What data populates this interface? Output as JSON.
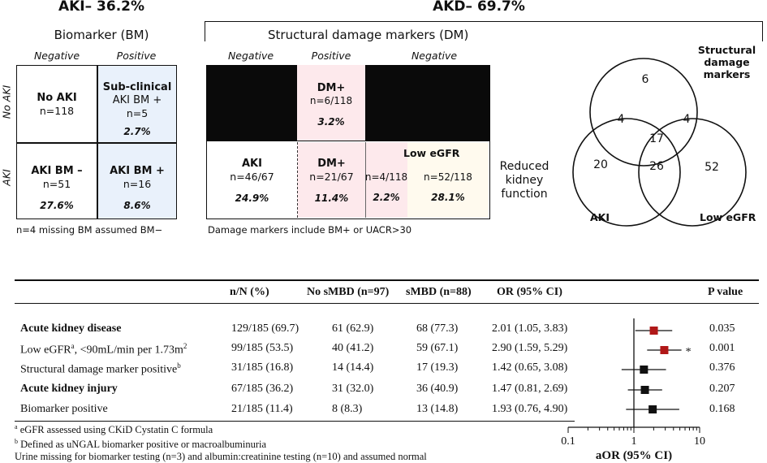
{
  "aki": {
    "title": "AKI– 36.2%",
    "subtitle": "Biomarker (BM)",
    "col_neg": "Negative",
    "col_pos": "Positive",
    "row_noaki": "No AKI",
    "row_aki": "AKI",
    "cells": {
      "tl": {
        "title": "No AKI",
        "n": "n=118"
      },
      "tr": {
        "title1": "Sub-clinical",
        "title2": "AKI BM +",
        "n": "n=5",
        "pct": "2.7%"
      },
      "bl": {
        "title": "AKI BM –",
        "n": "n=51",
        "pct": "27.6%"
      },
      "br": {
        "title": "AKI BM +",
        "n": "n=16",
        "pct": "8.6%"
      }
    },
    "note": "n=4 missing BM assumed BM−"
  },
  "akd": {
    "title": "AKD– 69.7%",
    "subtitle": "Structural damage markers (DM)",
    "col_neg1": "Negative",
    "col_pos": "Positive",
    "col_neg2": "Negative",
    "top_dm": {
      "title": "DM+",
      "n": "n=6/118",
      "pct": "3.2%"
    },
    "aki_cell": {
      "title": "AKI",
      "n": "n=46/67",
      "pct": "24.9%"
    },
    "dm_cell": {
      "title": "DM+",
      "n": "n=21/67",
      "pct": "11.4%"
    },
    "low_egfr": "Low eGFR",
    "lg1": {
      "n": "n=4/118",
      "pct": "2.2%"
    },
    "lg2": {
      "n": "n=52/118",
      "pct": "28.1%"
    },
    "reduced": [
      "Reduced",
      "kidney",
      "function"
    ],
    "note": "Damage markers include BM+ or UACR>30"
  },
  "venn": {
    "label_structural": [
      "Structural",
      "damage markers"
    ],
    "label_aki": "AKI",
    "label_low": "Low eGFR",
    "values": {
      "struct_only": "6",
      "struct_aki": "4",
      "struct_low": "4",
      "all": "17",
      "aki_only": "20",
      "aki_low": "26",
      "low_only": "52"
    }
  },
  "table": {
    "headers": {
      "nN": "n/N (%)",
      "no_smbd": "No sMBD (n=97)",
      "smbd": "sMBD (n=88)",
      "or": "OR (95% CI)",
      "p": "P value"
    },
    "rows": [
      {
        "label": "Acute kidney disease",
        "nN": "129/185 (69.7)",
        "no": "61 (62.9)",
        "yes": "68 (77.3)",
        "or": "2.01 (1.05, 3.83)",
        "p": "0.035"
      },
      {
        "label": "Low eGFR",
        "sup": "a",
        "label_rest": ", <90mL/min per 1.73m",
        "sup2": "2",
        "nN": "99/185 (53.5)",
        "no": "40 (41.2)",
        "yes": "59 (67.1)",
        "or": "2.90 (1.59, 5.29)",
        "p": "0.001"
      },
      {
        "label": "Structural damage marker positive",
        "sup": "b",
        "nN": "31/185 (16.8)",
        "no": "14 (14.4)",
        "yes": "17 (19.3)",
        "or": "1.42 (0.65, 3.08)",
        "p": "0.376"
      },
      {
        "label": "Acute kidney injury",
        "nN": "67/185 (36.2)",
        "no": "31 (32.0)",
        "yes": "36 (40.9)",
        "or": "1.47 (0.81, 2.69)",
        "p": "0.207"
      },
      {
        "label": "Biomarker positive",
        "nN": "21/185 (11.4)",
        "no": "8 (8.3)",
        "yes": "13 (14.8)",
        "or": "1.93 (0.76, 4.90)",
        "p": "0.168"
      }
    ],
    "footnotes": [
      {
        "sup": "a",
        "text": " eGFR assessed using CKiD Cystatin C formula"
      },
      {
        "sup": "b",
        "text": " Defined as uNGAL biomarker positive or macroalbuminuria"
      },
      {
        "sup": "",
        "text": "Urine missing for biomarker testing (n=3) and albumin:creatinine testing (n=10) and assumed normal"
      }
    ]
  },
  "chart_data": {
    "type": "scatter",
    "xlabel": "aOR (95% CI)",
    "x_scale": "log",
    "xlim": [
      0.1,
      10
    ],
    "tick_labels": [
      "0.1",
      "1",
      "10"
    ],
    "points": [
      {
        "est": 2.01,
        "lo": 1.05,
        "hi": 3.83,
        "color": "#b01818",
        "star": ""
      },
      {
        "est": 2.9,
        "lo": 1.59,
        "hi": 5.29,
        "color": "#b01818",
        "star": "*"
      },
      {
        "est": 1.42,
        "lo": 0.65,
        "hi": 3.08,
        "color": "#111111",
        "star": ""
      },
      {
        "est": 1.47,
        "lo": 0.81,
        "hi": 2.69,
        "color": "#111111",
        "star": ""
      },
      {
        "est": 1.93,
        "lo": 0.76,
        "hi": 4.9,
        "color": "#111111",
        "star": ""
      }
    ]
  },
  "colors": {
    "blue_cell": "#e9f1fb",
    "pink_cell": "#fde9ec",
    "cream_cell": "#fffaee",
    "black_cell": "#0a0a0a",
    "red_marker": "#b01818"
  }
}
